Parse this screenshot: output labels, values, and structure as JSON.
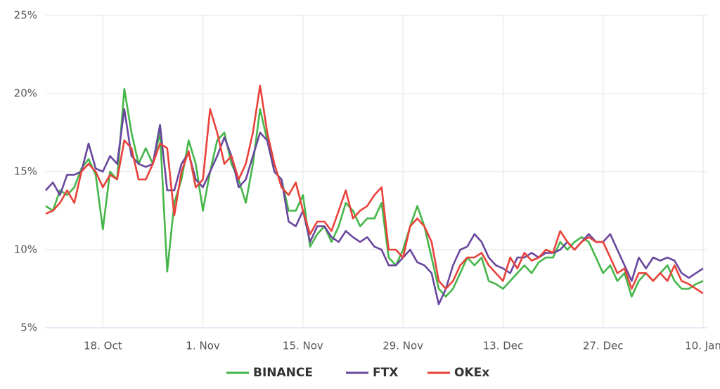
{
  "chart_data": {
    "type": "line",
    "categories": [
      null,
      null,
      null,
      null,
      null,
      null,
      null,
      null,
      "18. Oct",
      null,
      null,
      null,
      null,
      null,
      null,
      null,
      null,
      null,
      null,
      null,
      null,
      null,
      "1. Nov",
      null,
      null,
      null,
      null,
      null,
      null,
      null,
      null,
      null,
      null,
      null,
      null,
      null,
      "15. Nov",
      null,
      null,
      null,
      null,
      null,
      null,
      null,
      null,
      null,
      null,
      null,
      null,
      null,
      "29. Nov",
      null,
      null,
      null,
      null,
      null,
      null,
      null,
      null,
      null,
      null,
      null,
      null,
      null,
      "13. Dec",
      null,
      null,
      null,
      null,
      null,
      null,
      null,
      null,
      null,
      null,
      null,
      null,
      null,
      "27. Dec",
      null,
      null,
      null,
      null,
      null,
      null,
      null,
      null,
      null,
      null,
      null,
      null,
      null,
      "10. Jan"
    ],
    "series": [
      {
        "name": "BINANCE",
        "color": "#45b649",
        "values": [
          12.8,
          12.5,
          13.8,
          13.5,
          14.0,
          15.2,
          15.8,
          14.8,
          11.3,
          15.0,
          14.5,
          20.3,
          17.5,
          15.5,
          16.5,
          15.5,
          17.5,
          8.6,
          13.0,
          14.5,
          17.0,
          15.5,
          12.5,
          15.0,
          17.0,
          17.5,
          15.5,
          14.5,
          13.0,
          15.5,
          19.0,
          17.0,
          15.0,
          14.5,
          12.5,
          12.5,
          13.5,
          10.2,
          11.0,
          11.5,
          10.5,
          11.5,
          13.0,
          12.5,
          11.5,
          12.0,
          12.0,
          13.0,
          9.5,
          9.0,
          10.0,
          11.5,
          12.8,
          11.5,
          9.5,
          7.5,
          7.0,
          7.5,
          8.5,
          9.5,
          9.0,
          9.5,
          8.0,
          7.8,
          7.5,
          8.0,
          8.5,
          9.0,
          8.5,
          9.2,
          9.5,
          9.5,
          10.5,
          10.0,
          10.5,
          10.8,
          10.5,
          9.5,
          8.5,
          9.0,
          8.0,
          8.5,
          7.0,
          8.0,
          8.5,
          8.0,
          8.5,
          9.0,
          8.0,
          7.5,
          7.5,
          7.8,
          8.0
        ]
      },
      {
        "name": "FTX",
        "color": "#6a479e",
        "values": [
          13.8,
          14.3,
          13.5,
          14.8,
          14.8,
          15.0,
          16.8,
          15.2,
          15.0,
          16.0,
          15.5,
          19.0,
          16.0,
          15.5,
          15.3,
          15.5,
          18.0,
          13.8,
          13.8,
          15.5,
          16.2,
          14.5,
          14.0,
          15.0,
          16.0,
          17.2,
          16.0,
          14.0,
          14.5,
          16.0,
          17.5,
          17.0,
          15.0,
          14.5,
          11.8,
          11.5,
          12.5,
          10.5,
          11.5,
          11.5,
          10.8,
          10.5,
          11.2,
          10.8,
          10.5,
          10.8,
          10.2,
          10.0,
          9.0,
          9.0,
          9.5,
          10.0,
          9.2,
          9.0,
          8.5,
          6.5,
          7.5,
          9.0,
          10.0,
          10.2,
          11.0,
          10.5,
          9.5,
          9.0,
          8.8,
          8.5,
          9.5,
          9.5,
          9.8,
          9.5,
          9.8,
          9.8,
          10.0,
          10.5,
          10.0,
          10.5,
          11.0,
          10.5,
          10.5,
          11.0,
          10.0,
          9.0,
          8.0,
          9.5,
          8.8,
          9.5,
          9.3,
          9.5,
          9.3,
          8.5,
          8.2,
          8.5,
          8.8
        ]
      },
      {
        "name": "OKEx",
        "color": "#e8423a",
        "values": [
          12.3,
          12.5,
          13.0,
          13.8,
          13.0,
          15.0,
          15.5,
          15.0,
          14.0,
          14.8,
          14.5,
          17.0,
          16.5,
          14.5,
          14.5,
          15.5,
          16.8,
          16.5,
          12.2,
          15.0,
          16.3,
          14.0,
          14.5,
          19.0,
          17.5,
          15.5,
          16.0,
          14.5,
          15.5,
          17.5,
          20.5,
          17.5,
          15.5,
          14.0,
          13.5,
          14.3,
          12.5,
          11.0,
          11.8,
          11.8,
          11.2,
          12.5,
          13.8,
          12.0,
          12.5,
          12.8,
          13.5,
          14.0,
          10.0,
          10.0,
          9.5,
          11.5,
          12.0,
          11.5,
          10.5,
          8.0,
          7.5,
          8.0,
          9.0,
          9.5,
          9.5,
          9.8,
          9.0,
          8.5,
          8.0,
          9.5,
          8.8,
          9.8,
          9.3,
          9.5,
          10.0,
          9.8,
          11.2,
          10.5,
          10.0,
          10.5,
          10.8,
          10.5,
          10.5,
          9.5,
          8.5,
          8.8,
          7.5,
          8.5,
          8.5,
          8.0,
          8.5,
          8.0,
          9.0,
          8.0,
          7.8,
          7.5,
          7.2
        ]
      }
    ],
    "ylim": [
      5,
      25
    ],
    "yticks": [
      {
        "value": 5,
        "label": "5%"
      },
      {
        "value": 10,
        "label": "10%"
      },
      {
        "value": 15,
        "label": "15%"
      },
      {
        "value": 20,
        "label": "20%"
      },
      {
        "value": 25,
        "label": "25%"
      }
    ],
    "grid": true,
    "legend": "bottom"
  }
}
